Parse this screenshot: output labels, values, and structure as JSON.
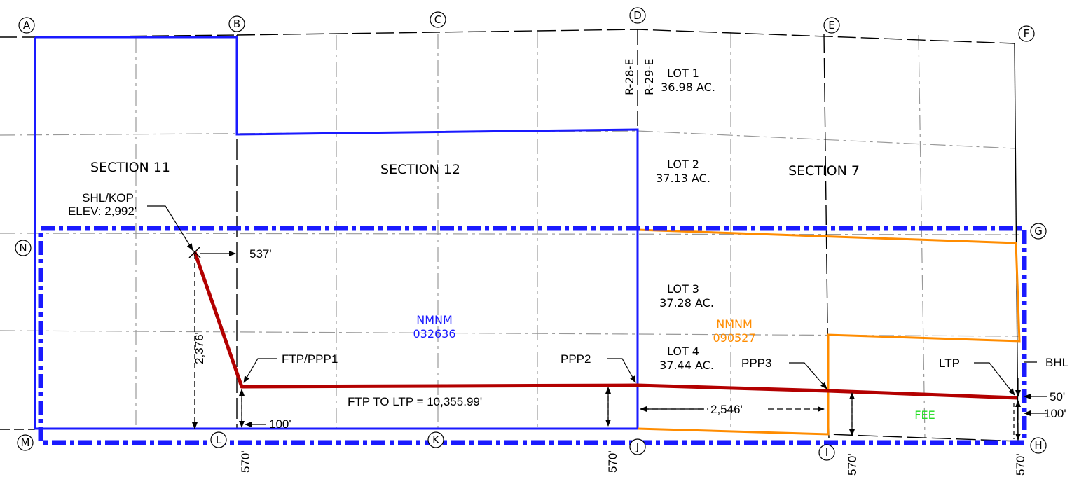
{
  "corners": {
    "A": "A",
    "B": "B",
    "C": "C",
    "D": "D",
    "E": "E",
    "F": "F",
    "G": "G",
    "H": "H",
    "I": "I",
    "J": "J",
    "K": "K",
    "L": "L",
    "M": "M",
    "N": "N"
  },
  "sections": {
    "s11": "SECTION 11",
    "s12": "SECTION 12",
    "s7": "SECTION 7"
  },
  "range": {
    "west": "R-28-E",
    "east": "R-29-E"
  },
  "lots": {
    "lot1": {
      "name": "LOT 1",
      "area": "36.98 AC."
    },
    "lot2": {
      "name": "LOT 2",
      "area": "37.13 AC."
    },
    "lot3": {
      "name": "LOT 3",
      "area": "37.28 AC."
    },
    "lot4": {
      "name": "LOT 4",
      "area": "37.44 AC."
    }
  },
  "leases": {
    "blue": {
      "line1": "NMNM",
      "line2": "032636",
      "color": "#1a1aff"
    },
    "orange": {
      "line1": "NMNM",
      "line2": "090527",
      "color": "#ff8c00"
    },
    "fee": {
      "label": "FEE",
      "color": "#22dd22"
    }
  },
  "points": {
    "shl": "SHL/KOP",
    "elev": "ELEV: 2,992'",
    "ftp": "FTP/PPP1",
    "ppp2": "PPP2",
    "ppp3": "PPP3",
    "ltp": "LTP",
    "bhl": "BHL"
  },
  "dimensions": {
    "d537": "537'",
    "d2376": "2,376'",
    "d100a": "100'",
    "d2546": "2,546'",
    "d50": "50'",
    "d100b": "100'",
    "d570a": "570'",
    "d570b": "570'",
    "d570c": "570'",
    "d570d": "570'",
    "lateral": "FTP TO LTP = 10,355.99'"
  },
  "colors": {
    "wellpath": "#b30000",
    "lease_blue": "#1a1aff",
    "lease_orange": "#ff8c00",
    "grid": "#999999"
  }
}
